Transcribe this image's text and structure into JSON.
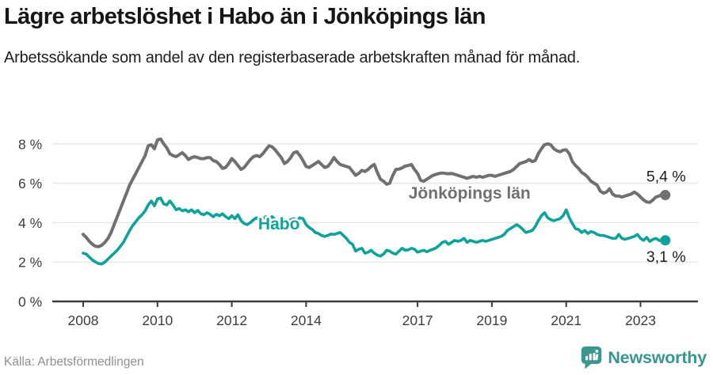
{
  "header": {
    "title": "Lägre arbetslöshet i Habo än i Jönköpings län",
    "subtitle": "Arbetssökande som andel av den registerbaserade arbetskraften månad för månad."
  },
  "footer": {
    "source": "Källa: Arbetsförmedlingen",
    "brand": "Newsworthy",
    "brand_color": "#3b978e"
  },
  "chart_data": {
    "type": "line",
    "unit": "percent of registered labour force",
    "frequency": "monthly",
    "start": "2008-01",
    "end": "2023-09",
    "grid": true,
    "legend_position": "inline-labels",
    "y_axis": {
      "range": [
        0,
        9
      ],
      "ticks": [
        {
          "label": "0 %",
          "value": 0
        },
        {
          "label": "2 %",
          "value": 2
        },
        {
          "label": "4 %",
          "value": 4
        },
        {
          "label": "6 %",
          "value": 6
        },
        {
          "label": "8 %",
          "value": 8
        }
      ]
    },
    "x_axis": {
      "ticks": [
        {
          "label": "2008",
          "year": 2008
        },
        {
          "label": "2010",
          "year": 2010
        },
        {
          "label": "2012",
          "year": 2012
        },
        {
          "label": "2014",
          "year": 2014
        },
        {
          "label": "2017",
          "year": 2017
        },
        {
          "label": "2019",
          "year": 2019
        },
        {
          "label": "2021",
          "year": 2021
        },
        {
          "label": "2023",
          "year": 2023
        }
      ]
    },
    "style": {
      "grid_color": "#e4e4e4",
      "axis_color": "#3c3c3c",
      "tick_label_color": "#3d3d3d",
      "value_label_color": "#1f1f1f"
    },
    "series": [
      {
        "id": "jonkoping",
        "name": "Jönköpings län",
        "color": "#707070",
        "stroke_width": 4,
        "end_label": "5,4 %",
        "end_value": 5.4,
        "end_label_side": "above",
        "label_anchor": {
          "x_year": 2018.4,
          "y_value": 5.22
        },
        "values": [
          3.4,
          3.25,
          3.05,
          2.9,
          2.8,
          2.78,
          2.85,
          3.0,
          3.2,
          3.5,
          3.9,
          4.3,
          4.7,
          5.1,
          5.5,
          5.9,
          6.2,
          6.5,
          6.8,
          7.1,
          7.4,
          7.9,
          7.95,
          7.75,
          8.2,
          8.25,
          8.0,
          7.8,
          7.5,
          7.4,
          7.35,
          7.45,
          7.55,
          7.4,
          7.2,
          7.3,
          7.35,
          7.3,
          7.25,
          7.25,
          7.3,
          7.3,
          7.15,
          7.1,
          6.95,
          6.75,
          6.8,
          7.0,
          7.25,
          7.1,
          6.9,
          6.7,
          6.8,
          7.0,
          7.2,
          7.35,
          7.4,
          7.35,
          7.5,
          7.7,
          7.9,
          7.85,
          7.7,
          7.5,
          7.3,
          7.0,
          7.1,
          7.3,
          7.55,
          7.6,
          7.4,
          7.15,
          6.85,
          6.8,
          6.9,
          7.0,
          7.1,
          6.95,
          6.8,
          6.85,
          7.05,
          7.3,
          7.1,
          6.95,
          6.9,
          6.85,
          6.8,
          6.6,
          6.4,
          6.5,
          6.65,
          6.6,
          6.7,
          6.85,
          6.95,
          6.55,
          6.2,
          6.1,
          5.95,
          6.0,
          6.4,
          6.7,
          6.72,
          6.78,
          6.87,
          6.9,
          6.95,
          6.7,
          6.5,
          6.15,
          6.1,
          6.2,
          6.3,
          6.4,
          6.45,
          6.5,
          6.52,
          6.5,
          6.48,
          6.5,
          6.45,
          6.4,
          6.35,
          6.3,
          6.25,
          6.3,
          6.35,
          6.3,
          6.35,
          6.3,
          6.35,
          6.4,
          6.4,
          6.35,
          6.4,
          6.45,
          6.5,
          6.55,
          6.6,
          6.7,
          6.85,
          7.0,
          7.05,
          7.1,
          7.2,
          7.1,
          7.15,
          7.5,
          7.75,
          7.95,
          8.0,
          7.95,
          7.75,
          7.65,
          7.6,
          7.68,
          7.7,
          7.5,
          7.1,
          6.9,
          6.75,
          6.55,
          6.45,
          6.3,
          6.1,
          6.0,
          5.9,
          5.6,
          5.5,
          5.55,
          5.72,
          5.45,
          5.35,
          5.35,
          5.3,
          5.35,
          5.4,
          5.45,
          5.55,
          5.45,
          5.3,
          5.15,
          5.05,
          5.03,
          5.15,
          5.3,
          5.35,
          5.45,
          5.4
        ]
      },
      {
        "id": "habo",
        "name": "Habo",
        "color": "#0ca39a",
        "stroke_width": 3.6,
        "end_label": "3,1 %",
        "end_value": 3.1,
        "end_label_side": "below",
        "label_anchor": {
          "x_year": 2013.27,
          "y_value": 3.65
        },
        "values": [
          2.45,
          2.4,
          2.25,
          2.1,
          2.0,
          1.92,
          1.9,
          2.0,
          2.15,
          2.3,
          2.45,
          2.6,
          2.8,
          3.0,
          3.3,
          3.6,
          3.85,
          4.05,
          4.25,
          4.4,
          4.6,
          4.9,
          5.1,
          4.85,
          5.2,
          5.25,
          4.95,
          4.9,
          5.1,
          4.9,
          4.65,
          4.72,
          4.6,
          4.65,
          4.55,
          4.65,
          4.5,
          4.62,
          4.45,
          4.4,
          4.5,
          4.42,
          4.3,
          4.42,
          4.35,
          4.45,
          4.3,
          4.2,
          4.35,
          4.2,
          4.4,
          4.1,
          3.95,
          3.9,
          4.0,
          4.15,
          4.25,
          4.1,
          4.2,
          4.3,
          4.2,
          4.3,
          4.15,
          4.05,
          4.2,
          4.1,
          4.0,
          4.15,
          4.2,
          4.1,
          4.25,
          4.2,
          3.9,
          3.75,
          3.65,
          3.5,
          3.45,
          3.35,
          3.3,
          3.35,
          3.42,
          3.4,
          3.45,
          3.5,
          3.35,
          3.2,
          3.0,
          2.9,
          2.55,
          2.65,
          2.7,
          2.45,
          2.5,
          2.6,
          2.45,
          2.35,
          2.3,
          2.4,
          2.6,
          2.55,
          2.45,
          2.4,
          2.55,
          2.7,
          2.6,
          2.62,
          2.7,
          2.65,
          2.5,
          2.55,
          2.6,
          2.52,
          2.6,
          2.65,
          2.72,
          2.85,
          3.0,
          3.05,
          2.9,
          3.0,
          3.1,
          3.05,
          3.1,
          3.2,
          3.0,
          3.1,
          3.05,
          3.0,
          3.05,
          3.1,
          3.05,
          3.1,
          3.15,
          3.2,
          3.25,
          3.3,
          3.4,
          3.6,
          3.7,
          3.8,
          3.9,
          3.8,
          3.65,
          3.5,
          3.55,
          3.6,
          3.8,
          4.1,
          4.35,
          4.5,
          4.25,
          4.15,
          4.1,
          4.15,
          4.2,
          4.35,
          4.65,
          4.25,
          3.95,
          3.7,
          3.65,
          3.5,
          3.6,
          3.45,
          3.55,
          3.5,
          3.4,
          3.35,
          3.35,
          3.3,
          3.25,
          3.2,
          3.2,
          3.4,
          3.2,
          3.15,
          3.2,
          3.25,
          3.3,
          3.4,
          3.2,
          3.1,
          3.25,
          3.05,
          3.15,
          3.2,
          3.1,
          3.05,
          3.1
        ]
      }
    ]
  }
}
